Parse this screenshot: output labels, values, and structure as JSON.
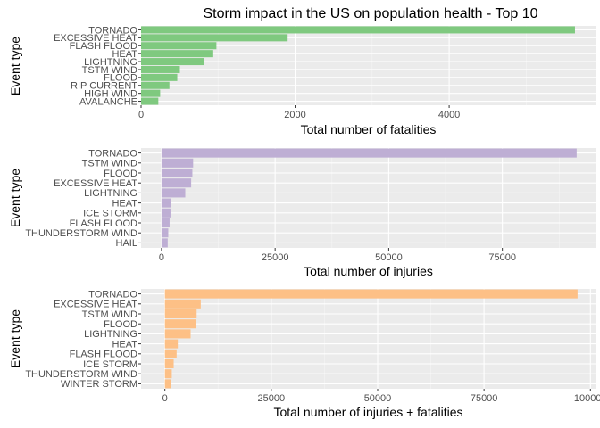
{
  "title": "Storm impact in the US on population health - Top 10",
  "chart_data": [
    {
      "type": "bar",
      "orientation": "horizontal",
      "color": "#7FC97F",
      "xlabel": "Total number of fatalities",
      "ylabel": "Event type",
      "xlim": [
        0,
        5900
      ],
      "xticks": [
        0,
        2000,
        4000
      ],
      "xtick_labels": [
        "0",
        "2000",
        "4000"
      ],
      "categories": [
        "TORNADO",
        "EXCESSIVE HEAT",
        "FLASH FLOOD",
        "HEAT",
        "LIGHTNING",
        "TSTM WIND",
        "FLOOD",
        "RIP CURRENT",
        "HIGH WIND",
        "AVALANCHE"
      ],
      "values": [
        5633,
        1903,
        978,
        937,
        816,
        504,
        470,
        368,
        248,
        224
      ],
      "grid": true
    },
    {
      "type": "bar",
      "orientation": "horizontal",
      "color": "#BEAED4",
      "xlabel": "Total number of injuries",
      "ylabel": "Event type",
      "xlim": [
        -4500,
        95500
      ],
      "xticks": [
        0,
        25000,
        50000,
        75000
      ],
      "xtick_labels": [
        "0",
        "25000",
        "50000",
        "75000"
      ],
      "categories": [
        "TORNADO",
        "TSTM WIND",
        "FLOOD",
        "EXCESSIVE HEAT",
        "LIGHTNING",
        "HEAT",
        "ICE STORM",
        "FLASH FLOOD",
        "THUNDERSTORM WIND",
        "HAIL"
      ],
      "values": [
        91346,
        6957,
        6789,
        6525,
        5230,
        2100,
        1975,
        1777,
        1488,
        1361
      ],
      "grid": true
    },
    {
      "type": "bar",
      "orientation": "horizontal",
      "color": "#FDC086",
      "xlabel": "Total number of injuries + fatalities",
      "ylabel": "Event type",
      "xlim": [
        -5600,
        101200
      ],
      "xticks": [
        0,
        25000,
        50000,
        75000,
        100000
      ],
      "xtick_labels": [
        "0",
        "25000",
        "50000",
        "75000",
        "100000"
      ],
      "categories": [
        "TORNADO",
        "EXCESSIVE HEAT",
        "TSTM WIND",
        "FLOOD",
        "LIGHTNING",
        "HEAT",
        "FLASH FLOOD",
        "ICE STORM",
        "THUNDERSTORM WIND",
        "WINTER STORM"
      ],
      "values": [
        96979,
        8428,
        7461,
        7259,
        6046,
        3037,
        2755,
        2064,
        1621,
        1527
      ],
      "grid": true
    }
  ]
}
